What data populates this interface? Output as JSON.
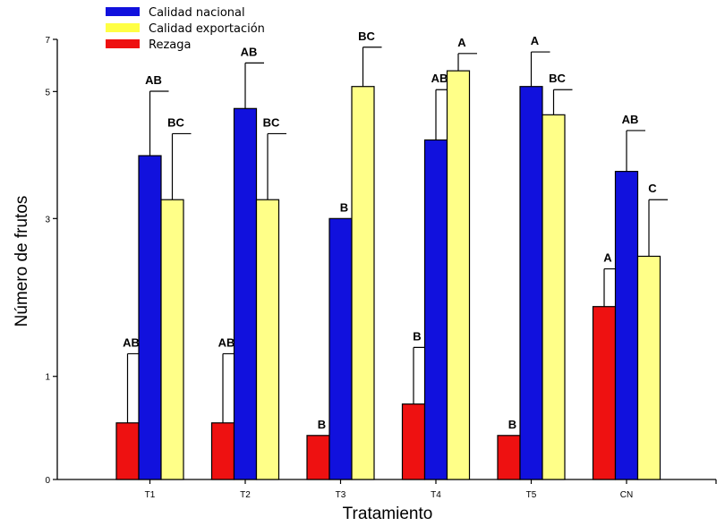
{
  "chart_data": {
    "type": "bar",
    "title": "",
    "xlabel": "Tratamiento",
    "ylabel": "Número de frutos",
    "ylim": [
      0,
      7
    ],
    "yticks": [
      "0",
      "1",
      "3",
      "5",
      "7"
    ],
    "categories": [
      "T1",
      "T2",
      "T3",
      "T4",
      "T5",
      "CN"
    ],
    "legend_position": "top-left",
    "series": [
      {
        "name": "Rezaga",
        "color": "#ee1111",
        "values": [
          0.45,
          0.45,
          0.35,
          0.6,
          0.35,
          1.75
        ],
        "errors": [
          0.55,
          0.55,
          0,
          0.5,
          0,
          0.6
        ],
        "letters": [
          "AB",
          "AB",
          "B",
          "B",
          "B",
          "A"
        ]
      },
      {
        "name": "Calidad nacional",
        "color": "#1111dd",
        "values": [
          4.15,
          4.9,
          3.15,
          4.4,
          5.5,
          3.9
        ],
        "errors": [
          1.2,
          1.35,
          0,
          1.0,
          1.1,
          0.65
        ],
        "letters": [
          "AB",
          "AB",
          "B",
          "AB",
          "A",
          "AB"
        ]
      },
      {
        "name": "Calidad exportación",
        "color": "#ffff88",
        "values": [
          3.45,
          3.45,
          5.5,
          6.0,
          4.8,
          2.55
        ],
        "errors": [
          1.05,
          1.05,
          1.25,
          0.55,
          0.6,
          0.9
        ],
        "letters": [
          "BC",
          "BC",
          "BC",
          "A",
          "BC",
          "C"
        ]
      }
    ]
  }
}
